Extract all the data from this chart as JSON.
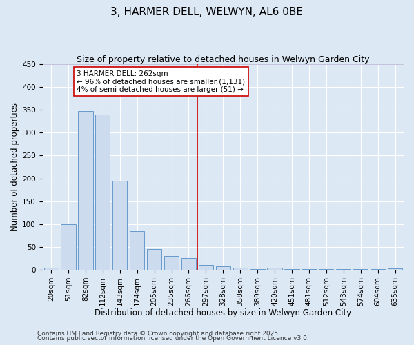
{
  "title": "3, HARMER DELL, WELWYN, AL6 0BE",
  "subtitle": "Size of property relative to detached houses in Welwyn Garden City",
  "xlabel": "Distribution of detached houses by size in Welwyn Garden City",
  "ylabel": "Number of detached properties",
  "categories": [
    "20sqm",
    "51sqm",
    "82sqm",
    "112sqm",
    "143sqm",
    "174sqm",
    "205sqm",
    "235sqm",
    "266sqm",
    "297sqm",
    "328sqm",
    "358sqm",
    "389sqm",
    "420sqm",
    "451sqm",
    "481sqm",
    "512sqm",
    "543sqm",
    "574sqm",
    "604sqm",
    "635sqm"
  ],
  "values": [
    5,
    100,
    348,
    340,
    195,
    84,
    45,
    30,
    25,
    10,
    8,
    5,
    2,
    5,
    1,
    2,
    1,
    1,
    1,
    1,
    3
  ],
  "bar_color": "#ccdcee",
  "bar_edge_color": "#6699cc",
  "background_color": "#dde8f5",
  "grid_color": "#ffffff",
  "vline_x": 8.5,
  "vline_color": "#cc0000",
  "annotation_line1": "3 HARMER DELL: 262sqm",
  "annotation_line2": "← 96% of detached houses are smaller (1,131)",
  "annotation_line3": "4% of semi-detached houses are larger (51) →",
  "annotation_box_color": "#ffffff",
  "annotation_box_edge": "#cc0000",
  "footer1": "Contains HM Land Registry data © Crown copyright and database right 2025.",
  "footer2": "Contains public sector information licensed under the Open Government Licence v3.0.",
  "ylim": [
    0,
    450
  ],
  "yticks": [
    0,
    50,
    100,
    150,
    200,
    250,
    300,
    350,
    400,
    450
  ],
  "title_fontsize": 11,
  "subtitle_fontsize": 9,
  "xlabel_fontsize": 8.5,
  "ylabel_fontsize": 8.5,
  "tick_fontsize": 7.5,
  "annotation_fontsize": 7.5,
  "footer_fontsize": 6.5
}
